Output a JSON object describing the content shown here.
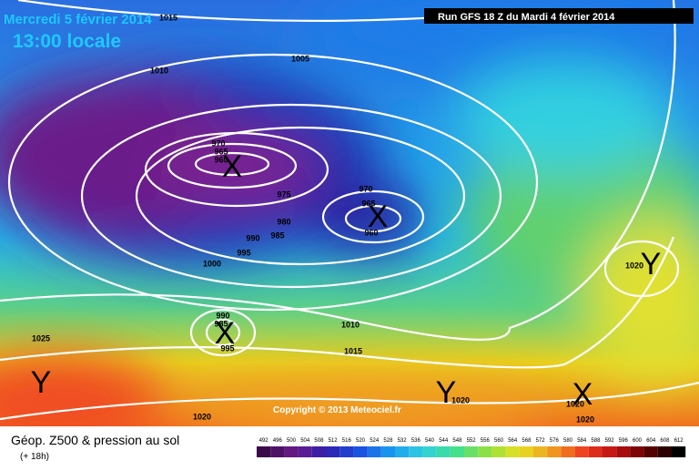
{
  "header": {
    "date": "Mercredi 5 février 2014",
    "time": "13:00 locale",
    "run": "Run GFS 18 Z du Mardi 4 février 2014"
  },
  "map": {
    "copyright": "Copyright © 2013 Meteociel.fr",
    "isobar_labels": [
      "1015",
      "1005",
      "1010",
      "970",
      "965",
      "960",
      "975",
      "980",
      "985",
      "990",
      "995",
      "1000",
      "970",
      "965",
      "960",
      "990",
      "985",
      "995",
      "1025",
      "1010",
      "1015",
      "1020",
      "1020",
      "1020",
      "1020",
      "1020"
    ],
    "lows": [
      "X",
      "X",
      "X",
      "X"
    ],
    "highs": [
      "Y",
      "Y",
      "Y"
    ]
  },
  "footer": {
    "title": "Géop. Z500 & pression au sol",
    "lead": "(+ 18h)",
    "scale": [
      492,
      496,
      500,
      504,
      508,
      512,
      516,
      520,
      524,
      528,
      532,
      536,
      540,
      544,
      548,
      552,
      556,
      560,
      564,
      568,
      572,
      576,
      580,
      584,
      588,
      592,
      596,
      600,
      604,
      608,
      612
    ]
  }
}
